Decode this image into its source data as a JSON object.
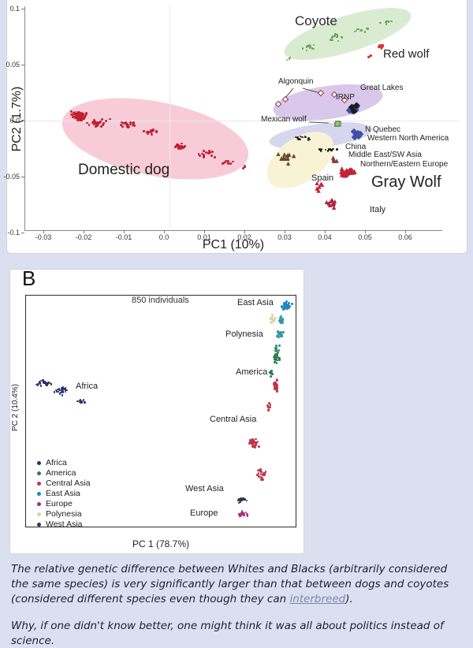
{
  "page": {
    "background_color": "#dbe0f1"
  },
  "caption": {
    "para1_pre": "The relative genetic difference between Whites and Blacks (arbitrarily considered the same species) is very significantly larger than that between dogs and coyotes (considered different species even though they can ",
    "link_text": "interbreed",
    "para1_post": ").",
    "para2": "Why, if one didn't know better, one might think it was all about politics instead of science.",
    "link_color": "#7b88aa",
    "text_color": "#1a2030"
  },
  "chart_data": [
    {
      "id": "canid_pca",
      "type": "scatter",
      "xlabel": "PC1 (10%)",
      "ylabel": "PC2 (1.7%)",
      "xlim": [
        -0.035,
        0.065
      ],
      "ylim": [
        -0.105,
        0.105
      ],
      "xticks": [
        "-0.03",
        "-0.02",
        "-0.01",
        "0.0",
        "0.01",
        "0.02",
        "0.03",
        "0.04",
        "0.05",
        "0.06"
      ],
      "yticks": [
        "0.1",
        "0.05",
        "0.0",
        "-0.05",
        "-0.1"
      ],
      "grid": "faint crosshair through origin",
      "legend_position": "none",
      "groups": [
        {
          "label": "Domestic dog",
          "marker": "circle",
          "color": "#c32032",
          "region_color": "#f7ccd8",
          "approx_center": [
            -0.021,
            0.004
          ],
          "approx_n": 230
        },
        {
          "label": "Coyote",
          "marker": "circle",
          "color": "#679f55",
          "region_color": "#d9ecd2",
          "approx_center": [
            0.046,
            0.077
          ],
          "approx_n": 50
        },
        {
          "label": "Red wolf",
          "marker": "circle",
          "color": "#d9342b",
          "approx_center": [
            0.054,
            0.066
          ],
          "approx_n": 18
        },
        {
          "label": "Algonquin",
          "marker": "diamond-open",
          "color": "#8c2c4d",
          "approx_center": [
            0.03,
            0.019
          ],
          "approx_n": 5
        },
        {
          "label": "Great Lakes",
          "marker": "diamond",
          "color": "#3c50a6",
          "region_color": "#d9c8e9",
          "approx_center": [
            0.047,
            0.01
          ],
          "approx_n": 12
        },
        {
          "label": "IRNP",
          "marker": "diamond",
          "color": "#1c1c1c",
          "approx_center": [
            0.047,
            0.011
          ],
          "approx_n": 3
        },
        {
          "label": "Mexican wolf",
          "marker": "square",
          "color": "#93c97f",
          "approx_center": [
            0.043,
            -0.002
          ],
          "approx_n": 8
        },
        {
          "label": "N Quebec",
          "marker": "diamond",
          "color": "#3c50a6",
          "approx_center": [
            0.048,
            -0.013
          ],
          "approx_n": 12
        },
        {
          "label": "Western North America",
          "marker": "circle",
          "color": "#22222e",
          "region_color": "#d6d6ef",
          "approx_center": [
            0.035,
            -0.015
          ],
          "approx_n": 12
        },
        {
          "label": "China",
          "marker": "circle",
          "color": "#1c1c1c",
          "approx_center": [
            0.041,
            -0.026
          ],
          "approx_n": 12
        },
        {
          "label": "Middle East/SW Asia",
          "marker": "triangle",
          "color": "#6d4528",
          "region_color": "#f8f3d4",
          "approx_center": [
            0.03,
            -0.033
          ],
          "approx_n": 13
        },
        {
          "label": "Northern/Eastern Europe",
          "marker": "triangle",
          "color": "#8d3b3b",
          "approx_center": [
            0.042,
            -0.036
          ],
          "approx_n": 6
        },
        {
          "label": "Spain",
          "marker": "triangle",
          "color": "#c22538",
          "approx_center": [
            0.039,
            -0.059
          ],
          "approx_n": 6
        },
        {
          "label": "Gray Wolf",
          "marker": "triangle",
          "color": "#c22538",
          "approx_center": [
            0.046,
            -0.046
          ],
          "approx_n": 30
        },
        {
          "label": "Italy",
          "marker": "triangle",
          "color": "#b02343",
          "approx_center": [
            0.042,
            -0.074
          ],
          "approx_n": 12
        }
      ]
    },
    {
      "id": "human_hgdp_pca",
      "type": "scatter",
      "panel_label": "B",
      "xlabel": "PC 1 (78.7%)",
      "ylabel": "PC 2 (10.4%)",
      "annotations": [
        "850 individuals"
      ],
      "legend_position": "lower-left",
      "grid": "off",
      "groups": [
        {
          "label": "Africa",
          "marker": "circle",
          "color": "#27306b",
          "pc_norm": [
            0.1,
            0.6
          ],
          "approx_n": 75
        },
        {
          "label": "America",
          "marker": "circle",
          "color": "#2f7b4d",
          "pc_norm": [
            0.92,
            0.74
          ],
          "approx_n": 30
        },
        {
          "label": "Central Asia",
          "marker": "circle",
          "color": "#c0334a",
          "pc_norm": [
            0.84,
            0.37
          ],
          "approx_n": 85
        },
        {
          "label": "East Asia",
          "marker": "circle",
          "color": "#1f86c0",
          "pc_norm": [
            0.96,
            0.95
          ],
          "approx_n": 75
        },
        {
          "label": "Europe",
          "marker": "circle",
          "color": "#9c3079",
          "pc_norm": [
            0.8,
            0.06
          ],
          "approx_n": 20
        },
        {
          "label": "Polynesia",
          "marker": "circle",
          "color": "#ddd3a0",
          "pc_norm": [
            0.92,
            0.9
          ],
          "approx_n": 16
        },
        {
          "label": "West Asia",
          "marker": "circle",
          "color": "#34314e",
          "pc_norm": [
            0.8,
            0.12
          ],
          "approx_n": 16
        }
      ]
    }
  ]
}
